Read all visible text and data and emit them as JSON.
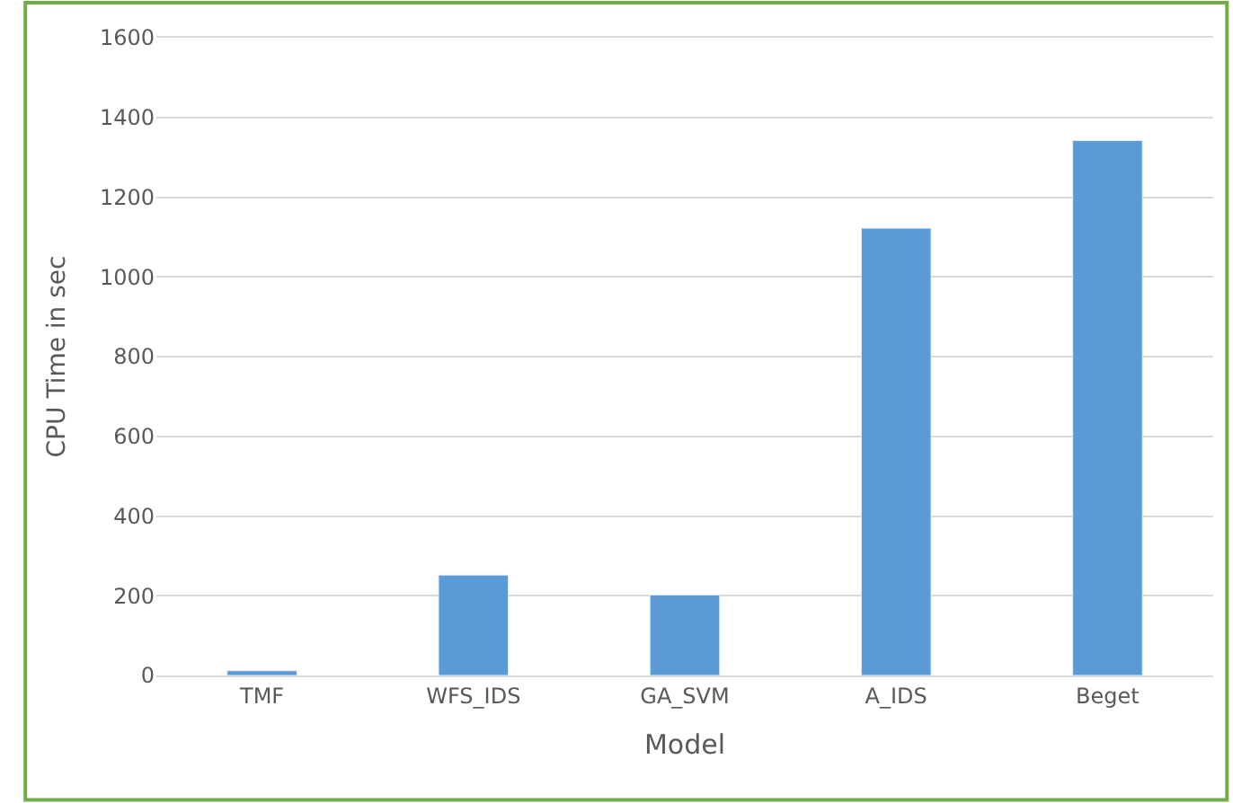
{
  "chart_data": {
    "type": "bar",
    "xlabel": "Model",
    "ylabel": "CPU Time in sec",
    "categories": [
      "TMF",
      "WFS_IDS",
      "GA_SVM",
      "A_IDS",
      "Beget"
    ],
    "values": [
      12,
      252,
      202,
      1122,
      1342
    ],
    "color": "#5b9bd5",
    "ylim": [
      0,
      1600
    ],
    "yticks": [
      0,
      200,
      400,
      600,
      800,
      1000,
      1200,
      1400,
      1600
    ],
    "grid": "y"
  }
}
